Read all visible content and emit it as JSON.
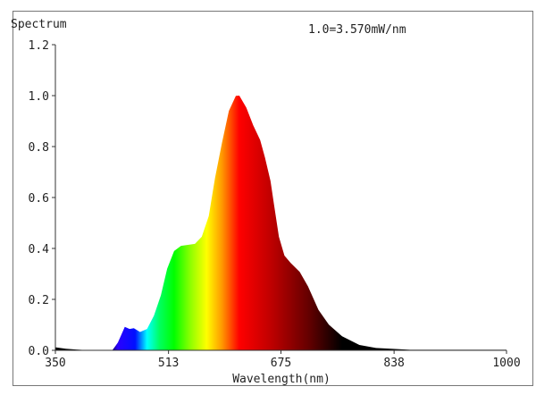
{
  "chart_data": {
    "type": "area",
    "title": "Spectrum",
    "annotation": "1.0=3.570mW/nm",
    "xlabel": "Wavelength(nm)",
    "ylabel": "",
    "xlim": [
      350,
      1000
    ],
    "ylim": [
      0,
      1.2
    ],
    "x_ticks": [
      "350",
      "513",
      "675",
      "838",
      "1000"
    ],
    "y_ticks": [
      "0.0",
      "0.2",
      "0.4",
      "0.6",
      "0.8",
      "1.0",
      "1.2"
    ],
    "grid": false,
    "fill": "visible-spectrum gradient by wavelength",
    "x": [
      350,
      365,
      380,
      400,
      432,
      440,
      450,
      457,
      463,
      472,
      482,
      492,
      502,
      511,
      521,
      531,
      551,
      561,
      571,
      580,
      590,
      600,
      610,
      615,
      625,
      635,
      645,
      652,
      660,
      665,
      672,
      680,
      689,
      702,
      714,
      729,
      744,
      763,
      788,
      812,
      861,
      900,
      950,
      1000
    ],
    "y": [
      0.012,
      0.006,
      0.003,
      0.0,
      0.0,
      0.03,
      0.092,
      0.084,
      0.087,
      0.072,
      0.084,
      0.136,
      0.216,
      0.32,
      0.39,
      0.41,
      0.418,
      0.446,
      0.527,
      0.677,
      0.815,
      0.94,
      0.999,
      1.0,
      0.953,
      0.884,
      0.826,
      0.757,
      0.665,
      0.573,
      0.446,
      0.372,
      0.343,
      0.308,
      0.251,
      0.159,
      0.101,
      0.055,
      0.021,
      0.009,
      0.002,
      0.002,
      0.002,
      0.002
    ]
  }
}
